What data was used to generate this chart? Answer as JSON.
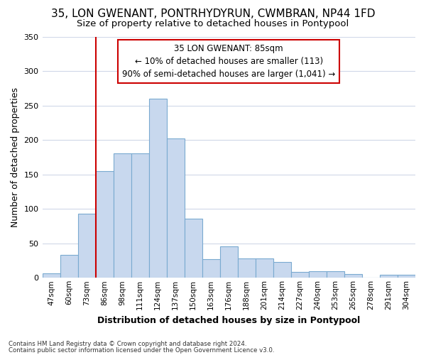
{
  "title1": "35, LON GWENANT, PONTRHYDYRUN, CWMBRAN, NP44 1FD",
  "title2": "Size of property relative to detached houses in Pontypool",
  "xlabel": "Distribution of detached houses by size in Pontypool",
  "ylabel": "Number of detached properties",
  "categories": [
    "47sqm",
    "60sqm",
    "73sqm",
    "86sqm",
    "98sqm",
    "111sqm",
    "124sqm",
    "137sqm",
    "150sqm",
    "163sqm",
    "176sqm",
    "188sqm",
    "201sqm",
    "214sqm",
    "227sqm",
    "240sqm",
    "253sqm",
    "265sqm",
    "278sqm",
    "291sqm",
    "304sqm"
  ],
  "values": [
    6,
    33,
    93,
    155,
    181,
    181,
    260,
    202,
    86,
    27,
    46,
    28,
    28,
    23,
    8,
    10,
    10,
    5,
    0,
    4,
    4
  ],
  "bar_color": "#c8d8ee",
  "bar_edge_color": "#7aaad0",
  "annotation_box_text": "35 LON GWENANT: 85sqm\n← 10% of detached houses are smaller (113)\n90% of semi-detached houses are larger (1,041) →",
  "annotation_box_color": "white",
  "annotation_box_edge_color": "#cc0000",
  "vline_color": "#cc0000",
  "footnote1": "Contains HM Land Registry data © Crown copyright and database right 2024.",
  "footnote2": "Contains public sector information licensed under the Open Government Licence v3.0.",
  "bg_color": "#ffffff",
  "plot_bg_color": "#ffffff",
  "grid_color": "#d0d8e8",
  "ylim": [
    0,
    350
  ],
  "yticks": [
    0,
    50,
    100,
    150,
    200,
    250,
    300,
    350
  ]
}
